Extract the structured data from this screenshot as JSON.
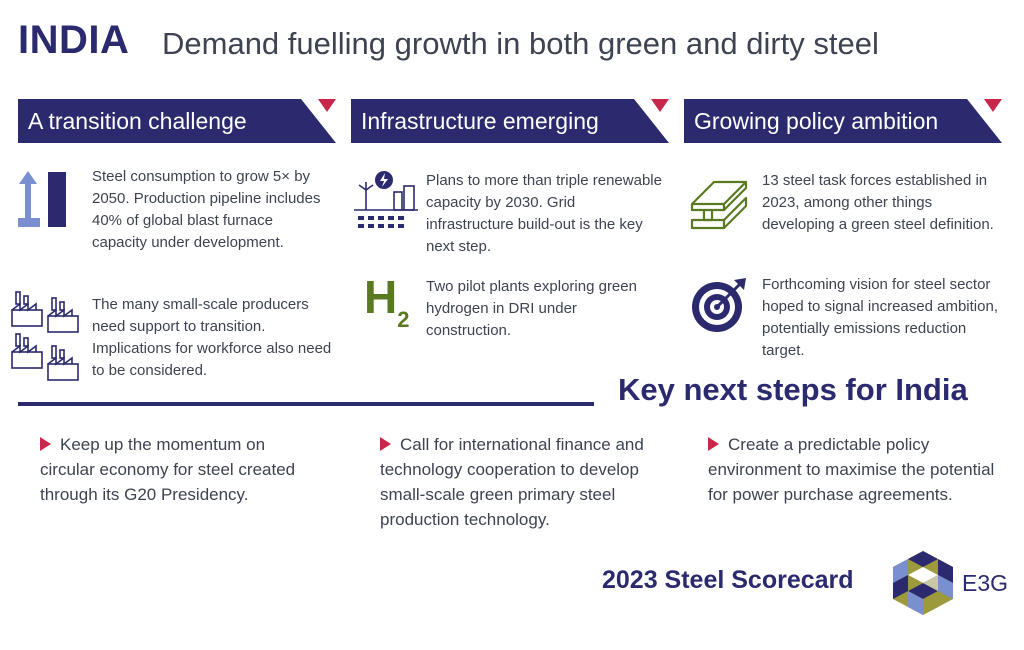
{
  "header": {
    "country": "INDIA",
    "headline": "Demand fuelling growth in both green and dirty steel"
  },
  "columns": [
    {
      "banner": "A transition challenge",
      "items": [
        {
          "icon": "growth-bar-arrow-icon",
          "text": "Steel consumption to grow 5× by 2050. Production pipeline includes 40% of global blast furnace capacity under development."
        },
        {
          "icon": "factories-icon",
          "text": "The many small-scale producers need support to transition. Implications for workforce also need to be considered."
        }
      ]
    },
    {
      "banner": "Infrastructure emerging",
      "items": [
        {
          "icon": "renewables-grid-icon",
          "text": "Plans to more than triple renewable capacity by 2030. Grid infrastructure build-out is the key next step."
        },
        {
          "icon": "hydrogen-icon",
          "text": "Two pilot plants exploring green hydrogen in DRI under construction.",
          "symbol": "H",
          "subscript": "2"
        }
      ]
    },
    {
      "banner": "Growing policy ambition",
      "items": [
        {
          "icon": "steel-beam-icon",
          "text": "13 steel task forces established in 2023, among other things developing a green steel definition."
        },
        {
          "icon": "target-icon",
          "text": "Forthcoming vision for steel sector hoped to signal increased ambition, potentially emissions reduction target."
        }
      ]
    }
  ],
  "next_steps": {
    "title": "Key next steps for India",
    "items": [
      "Keep up the momentum on circular economy for steel created through its G20 Presidency.",
      "Call for international finance and technology cooperation to develop small-scale green primary steel production technology.",
      "Create a predictable policy environment to maximise the potential for power purchase agreements."
    ]
  },
  "footer": {
    "scorecard": "2023 Steel Scorecard",
    "org": "E3G"
  },
  "colors": {
    "navy": "#2b2a6e",
    "accent_red": "#c8264a",
    "text": "#3d4351",
    "green": "#5a7a22",
    "light_blue": "#7a8fd0"
  }
}
